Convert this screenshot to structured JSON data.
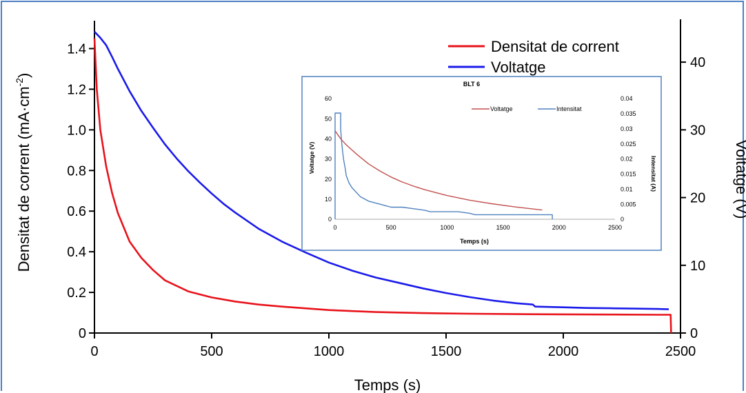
{
  "chart_data": [
    {
      "type": "line",
      "title": "",
      "xlabel": "Temps (s)",
      "ylabel": "Densitat de corrent (mA·cm⁻²)",
      "ylabel_main": "Densitat de corrent (mA·cm",
      "ylabel_sup": "-2",
      "ylabel_close": ")",
      "y2label": "Voltatge (V)",
      "xlim": [
        0,
        2500
      ],
      "ylim": [
        0,
        1.5
      ],
      "y2lim": [
        0,
        45
      ],
      "xticks": [
        "0",
        "500",
        "1000",
        "1500",
        "2000",
        "2500"
      ],
      "yticks": [
        "0",
        "0.2",
        "0.4",
        "0.6",
        "0.8",
        "1.0",
        "1.2",
        "1.4"
      ],
      "y2ticks": [
        "0",
        "10",
        "20",
        "30",
        "40"
      ],
      "legend": [
        "Densitat de corrent",
        "Voltatge"
      ],
      "legend_position": "top-right",
      "series": [
        {
          "name": "Densitat de corrent",
          "axis": "left",
          "color": "#e8121a",
          "x": [
            0,
            10,
            25,
            50,
            75,
            100,
            150,
            200,
            250,
            300,
            400,
            500,
            600,
            700,
            800,
            1000,
            1200,
            1400,
            1600,
            1800,
            2000,
            2200,
            2400,
            2458,
            2460
          ],
          "y": [
            1.45,
            1.2,
            1.0,
            0.82,
            0.69,
            0.59,
            0.45,
            0.37,
            0.31,
            0.26,
            0.205,
            0.175,
            0.155,
            0.14,
            0.13,
            0.113,
            0.103,
            0.098,
            0.095,
            0.093,
            0.092,
            0.091,
            0.09,
            0.09,
            0.0
          ]
        },
        {
          "name": "Voltatge",
          "axis": "right",
          "color": "#1a1aeb",
          "x": [
            0,
            25,
            50,
            75,
            100,
            150,
            200,
            250,
            300,
            350,
            400,
            450,
            500,
            550,
            600,
            700,
            800,
            900,
            1000,
            1100,
            1200,
            1300,
            1400,
            1500,
            1600,
            1700,
            1800,
            1870,
            1880,
            2000,
            2100,
            2200,
            2300,
            2400,
            2450
          ],
          "y": [
            44.5,
            43.6,
            42.5,
            40.8,
            39.0,
            35.7,
            32.8,
            30.3,
            27.9,
            25.8,
            23.9,
            22.2,
            20.6,
            19.1,
            17.8,
            15.4,
            13.5,
            11.9,
            10.4,
            9.2,
            8.2,
            7.4,
            6.6,
            5.9,
            5.3,
            4.8,
            4.4,
            4.2,
            3.9,
            3.8,
            3.7,
            3.65,
            3.6,
            3.55,
            3.5
          ]
        }
      ]
    },
    {
      "type": "line",
      "title": "BLT 6",
      "xlabel": "Temps (s)",
      "ylabel": "Voltatge (V)",
      "y2label": "Intensitat (A)",
      "xlim": [
        0,
        2500
      ],
      "ylim": [
        0,
        60
      ],
      "y2lim": [
        0,
        0.04
      ],
      "xticks": [
        "0",
        "500",
        "1000",
        "1500",
        "2000",
        "2500"
      ],
      "yticks": [
        "0",
        "10",
        "20",
        "30",
        "40",
        "50",
        "60"
      ],
      "y2ticks": [
        "0",
        "0.005",
        "0.01",
        "0.015",
        "0.02",
        "0.025",
        "0.03",
        "0.035",
        "0.04"
      ],
      "legend": [
        "Voltatge",
        "Intensitat"
      ],
      "legend_position": "top-right",
      "series": [
        {
          "name": "Voltatge",
          "axis": "left",
          "color": "#c0504d",
          "x": [
            0,
            50,
            100,
            200,
            300,
            400,
            500,
            600,
            700,
            800,
            1000,
            1200,
            1400,
            1600,
            1800,
            1850
          ],
          "y": [
            44,
            40,
            37,
            32,
            27.5,
            24,
            21,
            18.5,
            16.5,
            14.7,
            11.8,
            9.5,
            7.7,
            6.2,
            4.9,
            4.6
          ]
        },
        {
          "name": "Intensitat",
          "axis": "right",
          "color": "#4f81bd",
          "x": [
            0,
            0,
            50,
            50,
            60,
            75,
            90,
            100,
            125,
            150,
            175,
            200,
            225,
            250,
            300,
            350,
            400,
            450,
            500,
            600,
            700,
            800,
            850,
            900,
            1000,
            1100,
            1200,
            1250,
            1300,
            1400,
            1500,
            1600,
            1700,
            1800,
            1900,
            1940,
            1940
          ],
          "y": [
            0,
            0.0352,
            0.0352,
            0.03,
            0.025,
            0.02,
            0.017,
            0.0145,
            0.012,
            0.0105,
            0.0095,
            0.0085,
            0.0075,
            0.007,
            0.006,
            0.0055,
            0.005,
            0.0045,
            0.004,
            0.004,
            0.0035,
            0.003,
            0.0025,
            0.0025,
            0.0025,
            0.0025,
            0.002,
            0.0015,
            0.0015,
            0.0015,
            0.0015,
            0.0015,
            0.0015,
            0.0015,
            0.0015,
            0.0015,
            0
          ]
        }
      ]
    }
  ]
}
